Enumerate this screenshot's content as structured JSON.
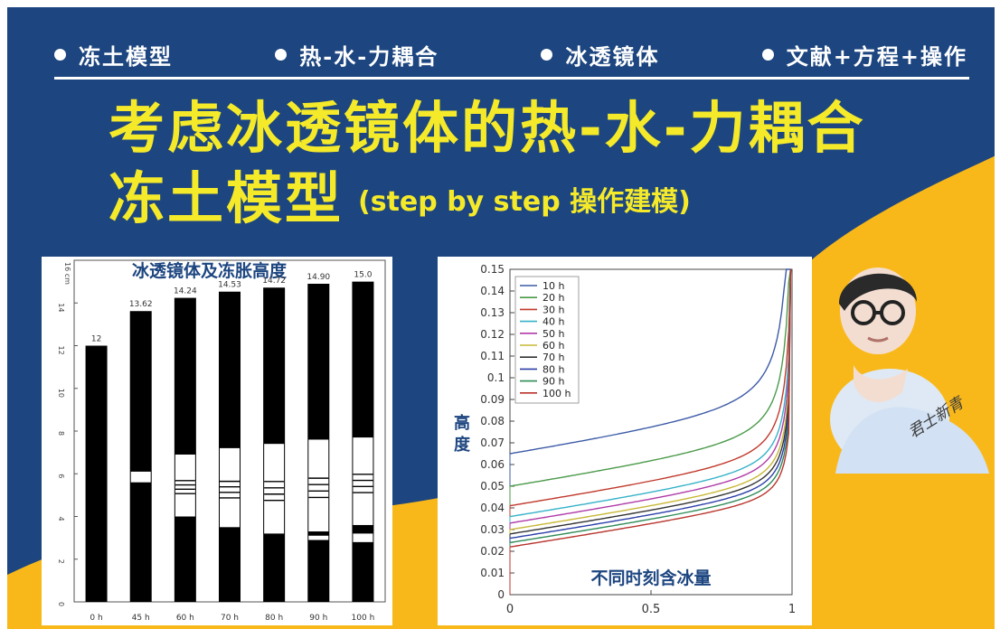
{
  "topics": [
    "冻土模型",
    "热-水-力耦合",
    "冰透镜体",
    "文献+方程+操作"
  ],
  "title": {
    "line1": "考虑冰透镜体的热-水-力耦合",
    "line2": "冻土模型",
    "line2_sub": "(step by step 操作建模)"
  },
  "left_chart": {
    "title": "冰透镜体及冻胀高度",
    "y_unit": "16 cm",
    "y_ticks": [
      "0",
      "2",
      "4",
      "6",
      "8",
      "10",
      "12",
      "14"
    ],
    "bars": [
      {
        "label": "0 h",
        "value_label": "12",
        "height": 12.0,
        "lenses": []
      },
      {
        "label": "45 h",
        "value_label": "13.62",
        "height": 13.62,
        "lenses": [
          [
            5.6,
            6.1
          ]
        ]
      },
      {
        "label": "60 h",
        "value_label": "14.24",
        "height": 14.24,
        "lenses": [
          [
            4.0,
            6.9
          ]
        ]
      },
      {
        "label": "70 h",
        "value_label": "14.53",
        "height": 14.53,
        "lenses": [
          [
            3.5,
            7.2
          ]
        ]
      },
      {
        "label": "80 h",
        "value_label": "14.72",
        "height": 14.72,
        "lenses": [
          [
            3.2,
            7.4
          ]
        ]
      },
      {
        "label": "90 h",
        "value_label": "14.90",
        "height": 14.9,
        "lenses": [
          [
            3.3,
            7.6
          ],
          [
            2.9,
            3.1
          ]
        ]
      },
      {
        "label": "100 h",
        "value_label": "15.0",
        "height": 15.0,
        "lenses": [
          [
            3.6,
            7.7
          ],
          [
            2.8,
            3.2
          ]
        ]
      }
    ]
  },
  "chart_data": {
    "type": "line",
    "title": "不同时刻含冰量",
    "xlabel": "",
    "ylabel": "高度",
    "xlim": [
      0,
      1
    ],
    "ylim": [
      0,
      0.15
    ],
    "x_ticks": [
      "0",
      "0.5",
      "1"
    ],
    "y_ticks": [
      "0",
      "0.01",
      "0.02",
      "0.03",
      "0.04",
      "0.05",
      "0.06",
      "0.07",
      "0.08",
      "0.09",
      "0.1",
      "0.11",
      "0.12",
      "0.13",
      "0.14",
      "0.15"
    ],
    "series": [
      {
        "name": "10 h",
        "start": 0.065,
        "color": "#3c5aa6"
      },
      {
        "name": "20 h",
        "start": 0.05,
        "color": "#4a9a4a"
      },
      {
        "name": "30 h",
        "start": 0.041,
        "color": "#c0392b"
      },
      {
        "name": "40 h",
        "start": 0.036,
        "color": "#35b2c8"
      },
      {
        "name": "50 h",
        "start": 0.033,
        "color": "#b03aa8"
      },
      {
        "name": "60 h",
        "start": 0.03,
        "color": "#c8b836"
      },
      {
        "name": "70 h",
        "start": 0.028,
        "color": "#333333"
      },
      {
        "name": "80 h",
        "start": 0.026,
        "color": "#2b3fa8"
      },
      {
        "name": "90 h",
        "start": 0.024,
        "color": "#2e8b57"
      },
      {
        "name": "100 h",
        "start": 0.022,
        "color": "#b8342c"
      }
    ]
  },
  "signature": "君士新青"
}
